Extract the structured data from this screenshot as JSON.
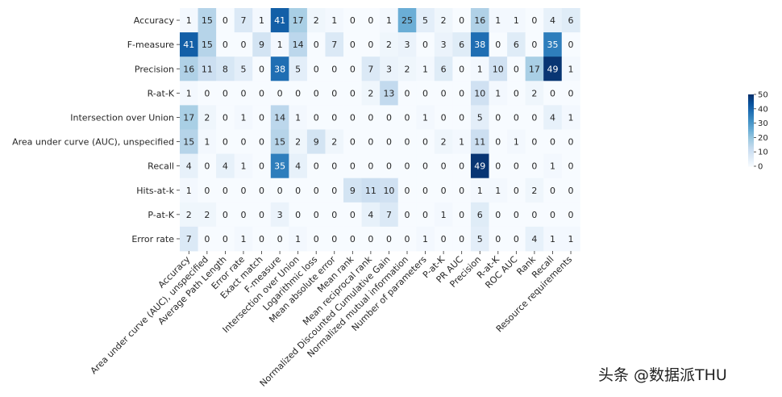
{
  "chart_data": {
    "type": "heatmap",
    "title": "",
    "xlabel": "",
    "ylabel": "",
    "rows": [
      "Accuracy",
      "F-measure",
      "Precision",
      "R-at-K",
      "Intersection over Union",
      "Area under curve (AUC), unspecified",
      "Recall",
      "Hits-at-k",
      "P-at-K",
      "Error rate"
    ],
    "columns": [
      "Accuracy",
      "Area under curve (AUC), unspecified",
      "Average Path Length",
      "Error rate",
      "Exact match",
      "F-measure",
      "Intersection over Union",
      "Logarithmic loss",
      "Mean absolute error",
      "Mean rank",
      "Mean reciprocal rank",
      "Normalized Discounted Cumulative Gain",
      "Normalized mutual information",
      "Number of parameters",
      "P-at-K",
      "PR AUC",
      "Precision",
      "R-at-K",
      "ROC AUC",
      "Rank",
      "Recall",
      "Resource requirements"
    ],
    "values": [
      [
        1,
        15,
        0,
        7,
        1,
        41,
        17,
        2,
        1,
        0,
        0,
        1,
        25,
        5,
        2,
        0,
        16,
        1,
        1,
        0,
        4,
        6
      ],
      [
        41,
        15,
        0,
        0,
        9,
        1,
        14,
        0,
        7,
        0,
        0,
        2,
        3,
        0,
        3,
        6,
        38,
        0,
        6,
        0,
        35,
        0
      ],
      [
        16,
        11,
        8,
        5,
        0,
        38,
        5,
        0,
        0,
        0,
        7,
        3,
        2,
        1,
        6,
        0,
        1,
        10,
        0,
        17,
        49,
        1
      ],
      [
        1,
        0,
        0,
        0,
        0,
        0,
        0,
        0,
        0,
        0,
        2,
        13,
        0,
        0,
        0,
        0,
        10,
        1,
        0,
        2,
        0,
        0
      ],
      [
        17,
        2,
        0,
        1,
        0,
        14,
        1,
        0,
        0,
        0,
        0,
        0,
        0,
        1,
        0,
        0,
        5,
        0,
        0,
        0,
        4,
        1
      ],
      [
        15,
        1,
        0,
        0,
        0,
        15,
        2,
        9,
        2,
        0,
        0,
        0,
        0,
        0,
        2,
        1,
        11,
        0,
        1,
        0,
        0,
        0
      ],
      [
        4,
        0,
        4,
        1,
        0,
        35,
        4,
        0,
        0,
        0,
        0,
        0,
        0,
        0,
        0,
        0,
        49,
        0,
        0,
        0,
        1,
        0
      ],
      [
        1,
        0,
        0,
        0,
        0,
        0,
        0,
        0,
        0,
        9,
        11,
        10,
        0,
        0,
        0,
        0,
        1,
        1,
        0,
        2,
        0,
        0
      ],
      [
        2,
        2,
        0,
        0,
        0,
        3,
        0,
        0,
        0,
        0,
        4,
        7,
        0,
        0,
        1,
        0,
        6,
        0,
        0,
        0,
        0,
        0
      ],
      [
        7,
        0,
        0,
        1,
        0,
        0,
        1,
        0,
        0,
        0,
        0,
        0,
        0,
        1,
        0,
        0,
        5,
        0,
        0,
        4,
        1,
        1
      ]
    ],
    "color_scale": {
      "min": 0,
      "max": 50,
      "low_color": "#f7fbff",
      "high_color": "#08306b"
    },
    "colorbar_ticks": [
      0,
      10,
      20,
      30,
      40,
      50
    ],
    "legend_position": "right"
  },
  "watermark": "头条 @数据派THU"
}
